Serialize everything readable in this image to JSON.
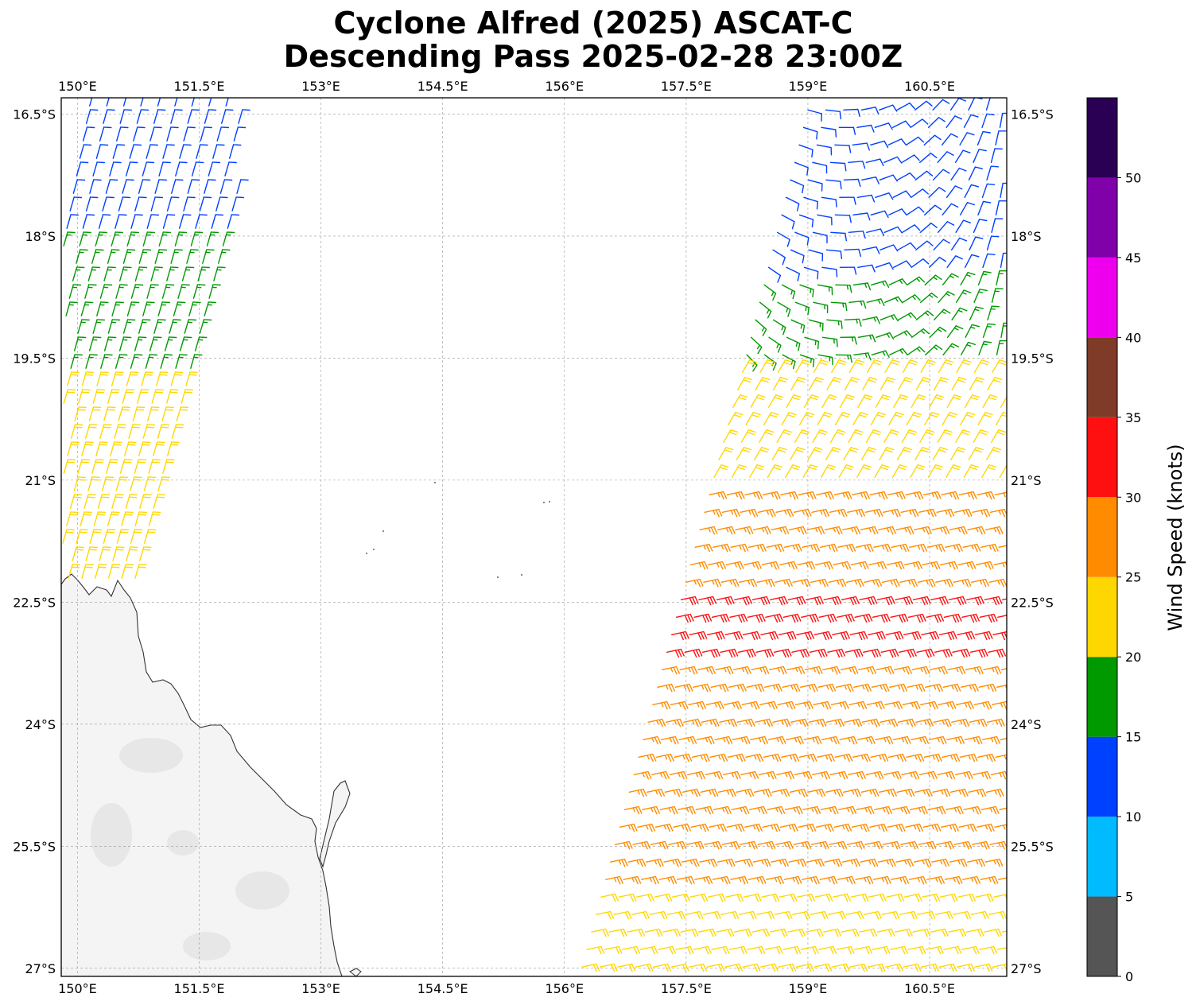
{
  "title_line1": "Cyclone Alfred (2025) ASCAT-C",
  "title_line2": "Descending Pass 2025-02-28 23:00Z",
  "map": {
    "lon_range": [
      149.8,
      161.45
    ],
    "lat_range": [
      -27.1,
      -16.3
    ],
    "lon_ticks": [
      150.0,
      151.5,
      153.0,
      154.5,
      156.0,
      157.5,
      159.0,
      160.5
    ],
    "lon_tick_labels": [
      "150°E",
      "151.5°E",
      "153°E",
      "154.5°E",
      "156°E",
      "157.5°E",
      "159°E",
      "160.5°E"
    ],
    "lat_ticks": [
      -16.5,
      -18.0,
      -19.5,
      -21.0,
      -22.5,
      -24.0,
      -25.5,
      -27.0
    ],
    "lat_tick_labels": [
      "16.5°S",
      "18°S",
      "19.5°S",
      "21°S",
      "22.5°S",
      "24°S",
      "25.5°S",
      "27°S"
    ],
    "grid": "dashed",
    "land_color": "#f4f4f4",
    "coast_color": "#333333"
  },
  "colorbar": {
    "label": "Wind Speed (knots)",
    "tick_labels": [
      "0",
      "5",
      "10",
      "15",
      "20",
      "25",
      "30",
      "35",
      "40",
      "45",
      "50"
    ],
    "bins": [
      {
        "from": 0,
        "to": 5,
        "color": "#555555"
      },
      {
        "from": 5,
        "to": 10,
        "color": "#00bbff"
      },
      {
        "from": 10,
        "to": 15,
        "color": "#0040ff"
      },
      {
        "from": 15,
        "to": 20,
        "color": "#009900"
      },
      {
        "from": 20,
        "to": 25,
        "color": "#ffd700"
      },
      {
        "from": 25,
        "to": 30,
        "color": "#ff8c00"
      },
      {
        "from": 30,
        "to": 35,
        "color": "#ff1010"
      },
      {
        "from": 35,
        "to": 40,
        "color": "#7f3a28"
      },
      {
        "from": 40,
        "to": 45,
        "color": "#ee00ee"
      },
      {
        "from": 45,
        "to": 50,
        "color": "#8000aa"
      },
      {
        "from": 50,
        "to": 55,
        "color": "#2a0055"
      }
    ]
  },
  "chart_data": {
    "type": "wind barbs",
    "units": "knots",
    "swaths": [
      {
        "name": "west swath",
        "region": "150–152°E, 16.5–22.5°S",
        "speed_zones": [
          {
            "lat_from": -16.4,
            "lat_to": -18.0,
            "speed_kt": 12
          },
          {
            "lat_from": -18.0,
            "lat_to": -19.8,
            "speed_kt": 17
          },
          {
            "lat_from": -19.8,
            "lat_to": -22.3,
            "speed_kt": 21
          }
        ]
      },
      {
        "name": "east swath",
        "region": "157–161.4°E, 16.5–27°S",
        "speed_zones": [
          {
            "lat_from": -16.4,
            "lat_to": -18.5,
            "speed_kt": 13
          },
          {
            "lat_from": -18.5,
            "lat_to": -19.6,
            "speed_kt": 17
          },
          {
            "lat_from": -19.6,
            "lat_to": -21.0,
            "speed_kt": 22
          },
          {
            "lat_from": -21.0,
            "lat_to": -22.3,
            "speed_kt": 27
          },
          {
            "lat_from": -22.3,
            "lat_to": -23.3,
            "speed_kt": 32
          },
          {
            "lat_from": -23.3,
            "lat_to": -26.0,
            "speed_kt": 27
          },
          {
            "lat_from": -26.0,
            "lat_to": -27.1,
            "speed_kt": 23
          }
        ]
      }
    ]
  }
}
